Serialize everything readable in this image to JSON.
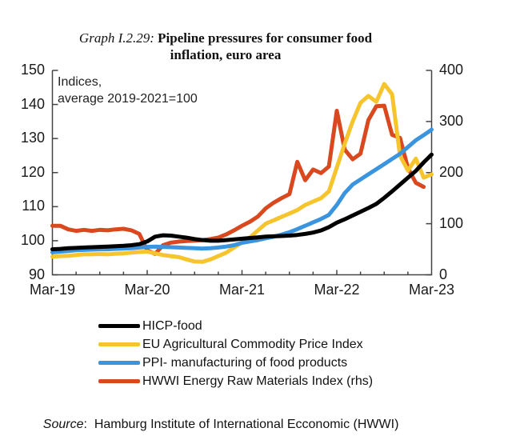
{
  "page": {
    "background": "#ffffff"
  },
  "title": {
    "prefix": "Graph I.2.29:",
    "text": " Pipeline pressures for consumer food inflation, euro area"
  },
  "annotation": "Indices,\naverage 2019-2021=100",
  "source": {
    "label": "Source",
    "text": ":  Hamburg Institute of International Ecconomic (HWWI)"
  },
  "chart_data": {
    "type": "line",
    "title": "Pipeline pressures for consumer food inflation, euro area",
    "grid": false,
    "legend_position": "bottom-left",
    "x_tick_labels": [
      "Mar-19",
      "Mar-20",
      "Mar-21",
      "Mar-22",
      "Mar-23"
    ],
    "left_axis": {
      "min": 90,
      "max": 150,
      "ticks": [
        90,
        100,
        110,
        120,
        130,
        140,
        150
      ]
    },
    "right_axis": {
      "min": 0,
      "max": 400,
      "ticks": [
        0,
        100,
        200,
        300,
        400
      ]
    },
    "months": [
      "Mar-19",
      "Apr-19",
      "May-19",
      "Jun-19",
      "Jul-19",
      "Aug-19",
      "Sep-19",
      "Oct-19",
      "Nov-19",
      "Dec-19",
      "Jan-20",
      "Feb-20",
      "Mar-20",
      "Apr-20",
      "May-20",
      "Jun-20",
      "Jul-20",
      "Aug-20",
      "Sep-20",
      "Oct-20",
      "Nov-20",
      "Dec-20",
      "Jan-21",
      "Feb-21",
      "Mar-21",
      "Apr-21",
      "May-21",
      "Jun-21",
      "Jul-21",
      "Aug-21",
      "Sep-21",
      "Oct-21",
      "Nov-21",
      "Dec-21",
      "Jan-22",
      "Feb-22",
      "Mar-22",
      "Apr-22",
      "May-22",
      "Jun-22",
      "Jul-22",
      "Aug-22",
      "Sep-22",
      "Oct-22",
      "Nov-22",
      "Dec-22",
      "Jan-23",
      "Feb-23",
      "Mar-23"
    ],
    "series": [
      {
        "name": "HICP-food",
        "axis": "left",
        "color": "#000000",
        "values": [
          97.5,
          97.6,
          97.8,
          97.9,
          98,
          98.1,
          98.2,
          98.3,
          98.4,
          98.5,
          98.7,
          99,
          99.8,
          101.2,
          101.6,
          101.5,
          101.2,
          100.9,
          100.5,
          100.2,
          100,
          100,
          100.2,
          100.4,
          100.6,
          100.8,
          101,
          101.2,
          101.3,
          101.4,
          101.5,
          101.7,
          102,
          102.4,
          103,
          104,
          105.3,
          106.3,
          107.4,
          108.5,
          109.6,
          110.8,
          112.6,
          114.5,
          116.5,
          118.5,
          120.5,
          123,
          125.3
        ]
      },
      {
        "name": "EU Agricultural Commodity Price Index",
        "axis": "left",
        "color": "#F6C42D",
        "values": [
          95.3,
          95.5,
          95.6,
          95.8,
          96,
          96,
          96.1,
          96,
          96.2,
          96.3,
          96.5,
          96.7,
          96.8,
          96.3,
          95.8,
          95.5,
          95.2,
          94.5,
          93.9,
          93.8,
          94.5,
          95.5,
          96.5,
          98,
          99.5,
          101,
          103,
          105,
          106,
          107,
          108,
          109,
          110.5,
          111.5,
          112.5,
          114.5,
          121.5,
          128.5,
          135,
          140.5,
          142.5,
          140.8,
          146,
          143,
          125,
          120.6,
          124.1,
          118.5,
          119.5
        ]
      },
      {
        "name": "PPI- manufacturing of food products",
        "axis": "left",
        "color": "#3B94DE",
        "values": [
          96.6,
          96.8,
          97,
          97.2,
          97.3,
          97.4,
          97.5,
          97.5,
          97.6,
          97.7,
          97.8,
          98,
          98.2,
          98.3,
          98.2,
          98.1,
          98,
          97.9,
          97.8,
          97.7,
          97.8,
          98,
          98.3,
          98.7,
          99.4,
          99.8,
          100.2,
          100.7,
          101.2,
          101.8,
          102.5,
          103.4,
          104.4,
          105.4,
          106.4,
          107.6,
          110.5,
          114,
          116.5,
          118,
          119.5,
          121,
          122.5,
          124,
          125.5,
          127.5,
          129.5,
          131,
          132.6
        ]
      },
      {
        "name": "HWWI Energy Raw Materials Index (rhs)",
        "axis": "right",
        "color": "#D9481E",
        "values": [
          96,
          96,
          89,
          86,
          88,
          86,
          88,
          87,
          89,
          90,
          87,
          80,
          48,
          41,
          58,
          63,
          65,
          66,
          67,
          68,
          70,
          73,
          79,
          87,
          96,
          104,
          114,
          130,
          141,
          150,
          158,
          221,
          185,
          206,
          199,
          212,
          321,
          245,
          226,
          237,
          303,
          330,
          331,
          274,
          268,
          209,
          180,
          172,
          null
        ]
      }
    ]
  }
}
